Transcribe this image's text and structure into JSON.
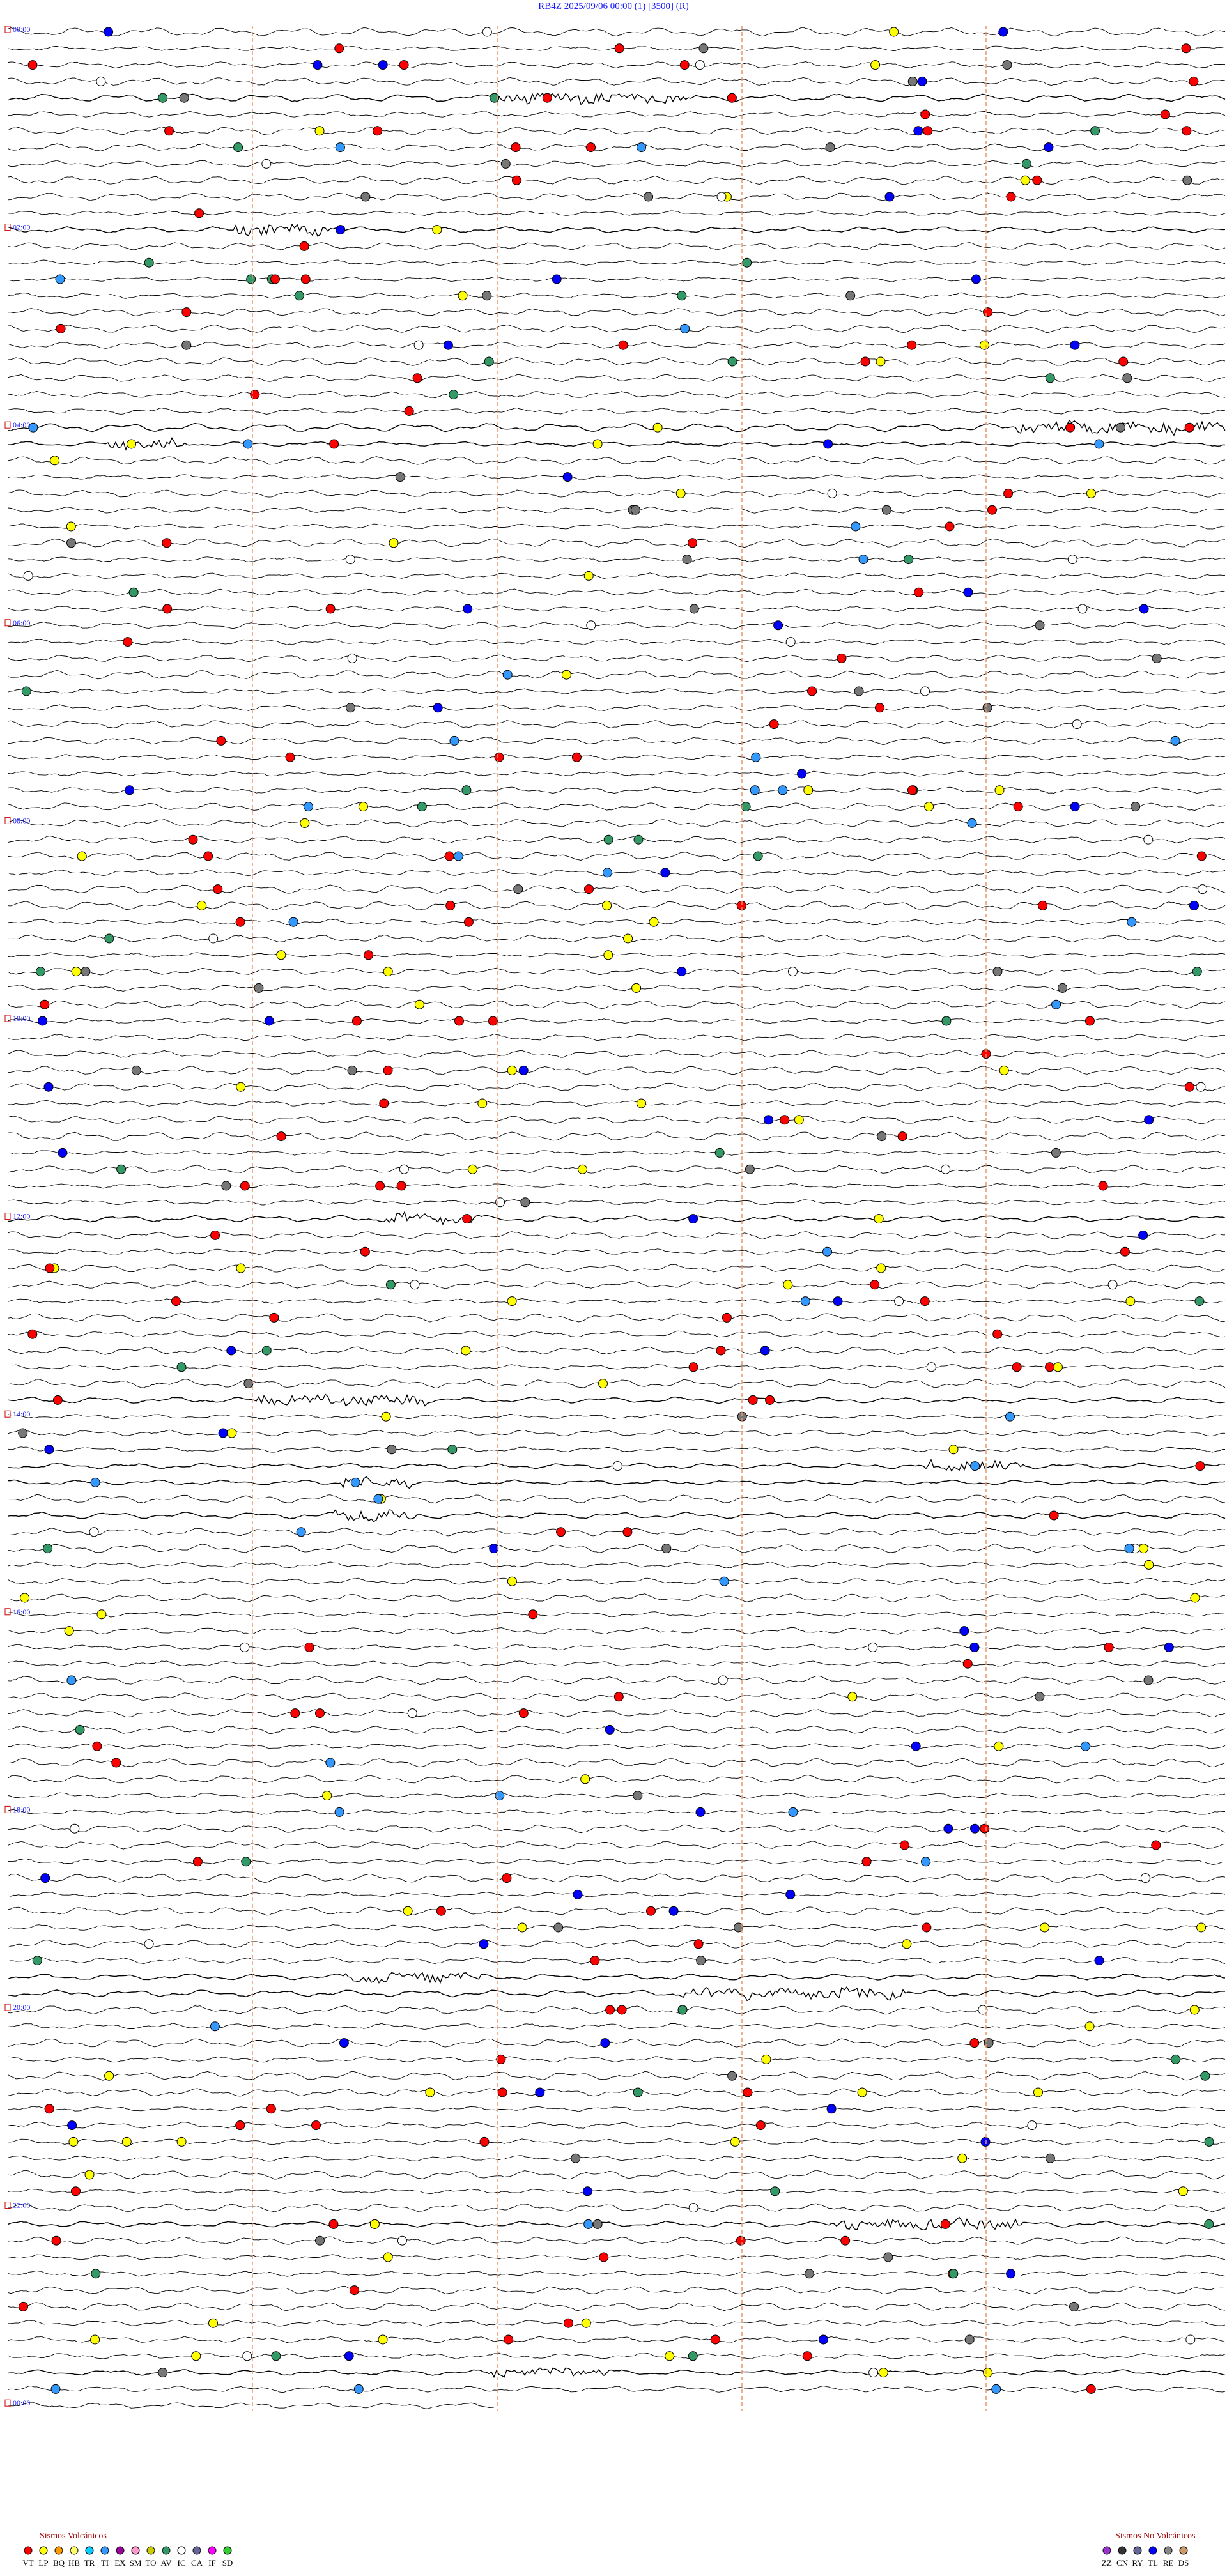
{
  "header": {
    "title": "RB4Z    2025/09/06 00:00    (1)    [3500]  (R)"
  },
  "time_labels": [
    "00:00",
    "02:00",
    "04:00",
    "06:00",
    "08:00",
    "10:00",
    "12:00",
    "14:00",
    "16:00",
    "18:00",
    "20:00",
    "22:00",
    "00:00"
  ],
  "legend_volcanic": {
    "title": "Sismos Volcánicos",
    "items": [
      {
        "code": "VT",
        "color": "#ff0000"
      },
      {
        "code": "LP",
        "color": "#ffff00"
      },
      {
        "code": "BQ",
        "color": "#ff9900"
      },
      {
        "code": "HB",
        "color": "#ffff66"
      },
      {
        "code": "TR",
        "color": "#00ccff"
      },
      {
        "code": "TI",
        "color": "#3399ff"
      },
      {
        "code": "EX",
        "color": "#990099"
      },
      {
        "code": "SM",
        "color": "#ff99cc"
      },
      {
        "code": "TO",
        "color": "#cccc00"
      },
      {
        "code": "AV",
        "color": "#339966"
      },
      {
        "code": "IC",
        "color": "#ffffff"
      },
      {
        "code": "CA",
        "color": "#666699"
      },
      {
        "code": "IF",
        "color": "#ff00ff"
      },
      {
        "code": "SD",
        "color": "#33cc33"
      }
    ]
  },
  "legend_non_volcanic": {
    "title": "Sismos No Volcánicos",
    "items": [
      {
        "code": "ZZ",
        "color": "#9933cc"
      },
      {
        "code": "CN",
        "color": "#333333"
      },
      {
        "code": "RY",
        "color": "#666699"
      },
      {
        "code": "TL",
        "color": "#0000ff"
      },
      {
        "code": "RE",
        "color": "#888888"
      },
      {
        "code": "DS",
        "color": "#cc9966"
      }
    ]
  }
}
